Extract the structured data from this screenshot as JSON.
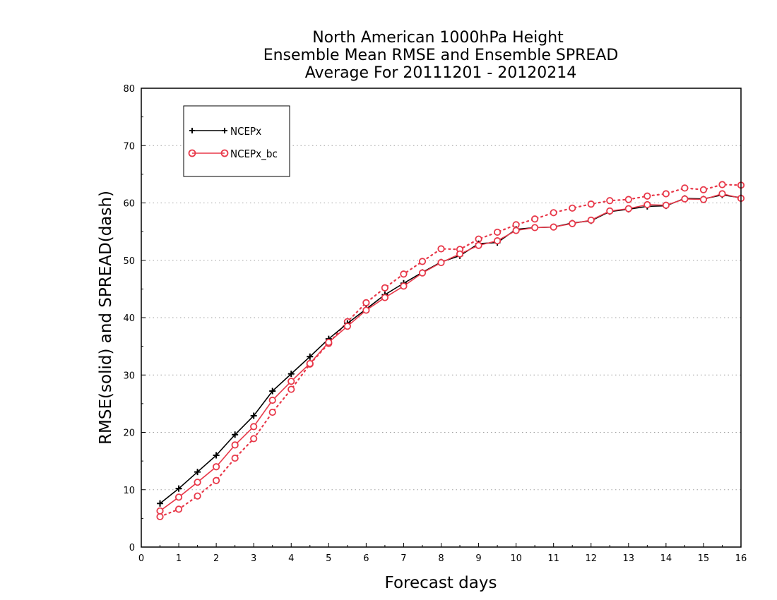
{
  "chart_data": {
    "type": "line",
    "title": [
      "North American 1000hPa Height",
      "Ensemble Mean RMSE and Ensemble SPREAD",
      "Average For 20111201 - 20120214"
    ],
    "xlabel": "Forecast days",
    "ylabel": "RMSE(solid) and SPREAD(dash)",
    "xlim": [
      0,
      16
    ],
    "ylim": [
      0,
      80
    ],
    "xticks": [
      0,
      1,
      2,
      3,
      4,
      5,
      6,
      7,
      8,
      9,
      10,
      11,
      12,
      13,
      14,
      15,
      16
    ],
    "yticks": [
      0,
      10,
      20,
      30,
      40,
      50,
      60,
      70,
      80
    ],
    "grid": "horizontal-dotted",
    "legend_position": "top-left",
    "x": [
      0.5,
      1,
      1.5,
      2,
      2.5,
      3,
      3.5,
      4,
      4.5,
      5,
      5.5,
      6,
      6.5,
      7,
      7.5,
      8,
      8.5,
      9,
      9.5,
      10,
      10.5,
      11,
      11.5,
      12,
      12.5,
      13,
      13.5,
      14,
      14.5,
      15,
      15.5,
      16
    ],
    "series": [
      {
        "name": "NCEPx",
        "color": "#000000",
        "marker": "plus",
        "rmse": [
          7.6,
          10.2,
          13.1,
          16.0,
          19.6,
          22.9,
          27.2,
          30.2,
          33.2,
          36.3,
          39.0,
          41.5,
          44.0,
          46.0,
          47.9,
          49.7,
          50.8,
          52.9,
          53.1,
          55.4,
          55.7,
          55.8,
          56.5,
          56.9,
          58.5,
          58.9,
          59.4,
          59.5,
          60.8,
          60.7,
          61.4,
          60.9
        ]
      },
      {
        "name": "NCEPx_bc",
        "color": "#e8394a",
        "marker": "circle",
        "rmse": [
          6.3,
          8.7,
          11.3,
          14.0,
          17.8,
          21.0,
          25.6,
          28.9,
          32.0,
          35.7,
          38.5,
          41.3,
          43.5,
          45.5,
          47.8,
          49.6,
          51.1,
          52.6,
          53.4,
          55.2,
          55.7,
          55.8,
          56.4,
          57.0,
          58.6,
          59.0,
          59.7,
          59.6,
          60.7,
          60.6,
          61.6,
          60.8
        ],
        "spread": [
          5.3,
          6.6,
          8.9,
          11.6,
          15.5,
          18.9,
          23.5,
          27.5,
          31.9,
          35.5,
          39.3,
          42.6,
          45.2,
          47.6,
          49.8,
          52.0,
          51.9,
          53.7,
          54.9,
          56.2,
          57.2,
          58.3,
          59.1,
          59.8,
          60.4,
          60.6,
          61.2,
          61.6,
          62.6,
          62.3,
          63.2,
          63.1
        ]
      }
    ]
  }
}
